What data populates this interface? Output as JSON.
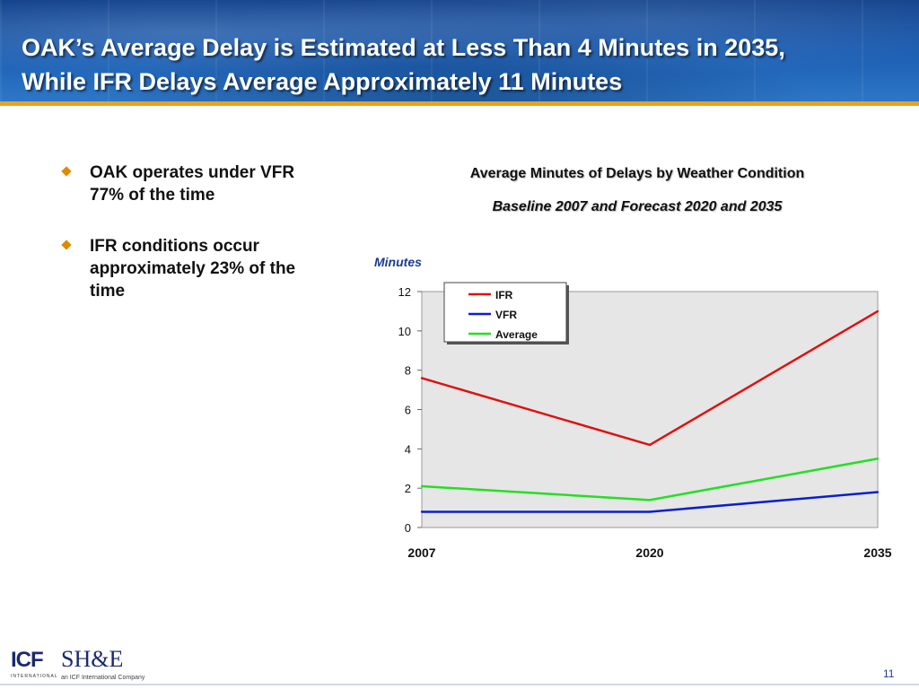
{
  "slide": {
    "title_line1": "OAK’s Average Delay is Estimated at Less Than 4 Minutes in 2035,",
    "title_line2": "While IFR Delays Average Approximately 11 Minutes",
    "bullets": [
      {
        "text": "OAK operates under VFR 77% of the time"
      },
      {
        "text": "IFR conditions occur approximately 23% of the time"
      }
    ],
    "page_number": "11"
  },
  "logos": {
    "icf_text": "ICF",
    "icf_sub": "INTERNATIONAL",
    "she_text": "SH&E",
    "she_sub": "an ICF International Company"
  },
  "chart_data": {
    "type": "line",
    "title": "Average Minutes of Delays by Weather Condition",
    "subtitle": "Baseline 2007 and Forecast 2020 and 2035",
    "ylabel": "Minutes",
    "xlabel": "",
    "x": [
      "2007",
      "2020",
      "2035"
    ],
    "ylim": [
      0,
      12
    ],
    "yticks": [
      0,
      2,
      4,
      6,
      8,
      10,
      12
    ],
    "grid": false,
    "legend_position": "top-left",
    "plot_background": "#e6e6e6",
    "series": [
      {
        "name": "IFR",
        "values": [
          7.6,
          4.2,
          11.0
        ],
        "color": "#e01010"
      },
      {
        "name": "VFR",
        "values": [
          0.8,
          0.8,
          1.8
        ],
        "color": "#0a1ed2"
      },
      {
        "name": "Average",
        "values": [
          2.1,
          1.4,
          3.5
        ],
        "color": "#22e022"
      }
    ]
  }
}
